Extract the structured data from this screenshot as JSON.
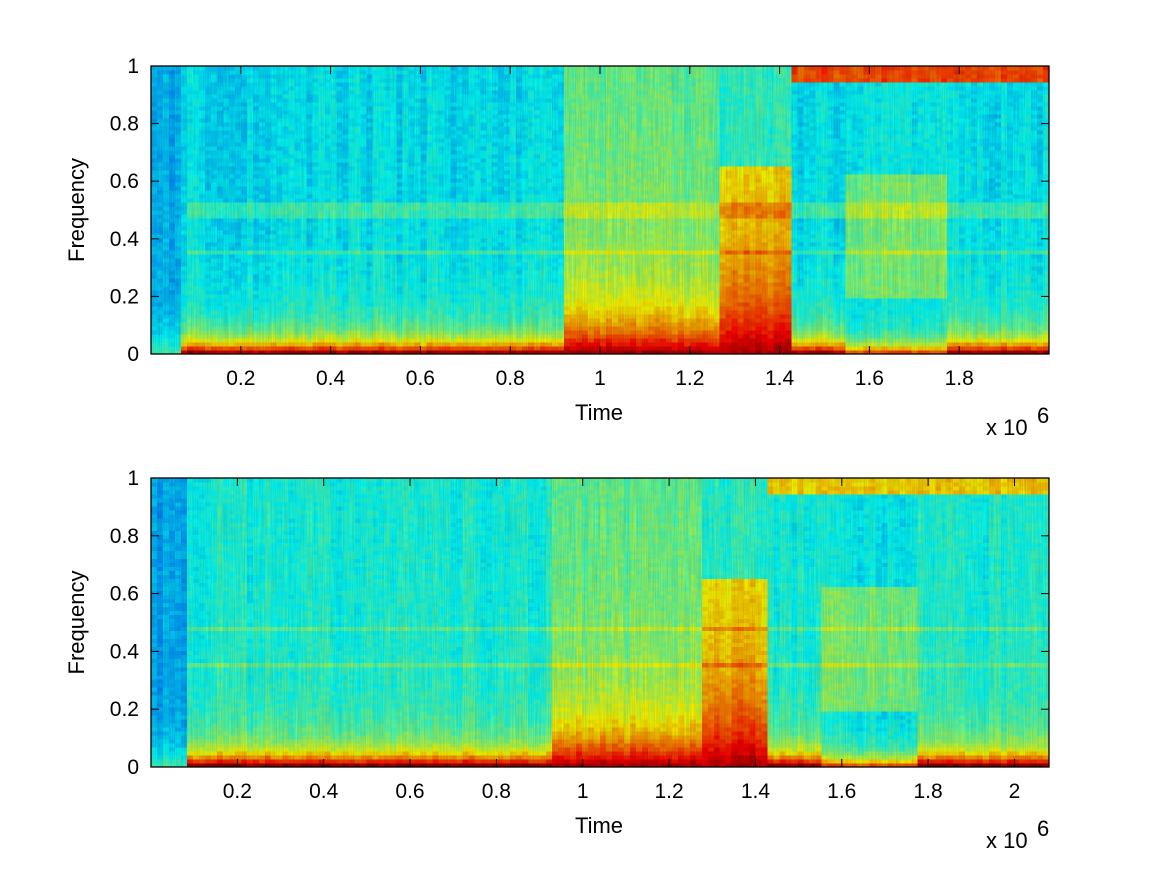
{
  "chart_data": [
    {
      "type": "heatmap",
      "subtype": "spectrogram",
      "colormap": "jet",
      "xlabel": "Time",
      "ylabel": "Frequency",
      "x_multiplier": "x 10",
      "x_multiplier_exponent": "6",
      "xlim": [
        0,
        2000000
      ],
      "ylim": [
        0,
        1
      ],
      "x_ticks": [
        200000,
        400000,
        600000,
        800000,
        1000000,
        1200000,
        1400000,
        1600000,
        1800000
      ],
      "x_tick_labels": [
        "0.2",
        "0.4",
        "0.6",
        "0.8",
        "1",
        "1.2",
        "1.4",
        "1.6",
        "1.8"
      ],
      "y_ticks": [
        0,
        0.2,
        0.4,
        0.6,
        0.8,
        1
      ],
      "y_tick_labels": [
        "0",
        "0.2",
        "0.4",
        "0.6",
        "0.8",
        "1"
      ],
      "grid": false,
      "segments": [
        {
          "t_start": 0,
          "t_end": 70000,
          "low_band_top": 0.03,
          "description": "quiet onset, cool colors"
        },
        {
          "t_start": 70000,
          "t_end": 925000,
          "low_band_top": 0.07,
          "energy": "red band below 0.05, yellow-green up to ~0.15"
        },
        {
          "t_start": 925000,
          "t_end": 1270000,
          "low_band_top": 0.27,
          "energy": "strong red below 0.15, yellow-green to 1"
        },
        {
          "t_start": 1270000,
          "t_end": 1430000,
          "low_band_top": 0.25,
          "energy": "orange burst up to ~0.25, yellow to 0.65"
        },
        {
          "t_start": 1430000,
          "t_end": 1550000,
          "low_band_top": 0.05,
          "energy": "red floor, cyan above"
        },
        {
          "t_start": 1550000,
          "t_end": 1780000,
          "low_band_top": 0.05,
          "energy": "green patch 0.2–0.62"
        },
        {
          "t_start": 1780000,
          "t_end": 2000000,
          "low_band_top": 0.06,
          "energy": "red floor rising, cyan above"
        }
      ],
      "high_band": {
        "t_start": 1430000,
        "t_end": 2000000,
        "freq_range": [
          0.95,
          1.0
        ],
        "level": "orange"
      },
      "harmonic_lines": [
        0.35,
        0.48,
        0.5,
        0.52
      ]
    },
    {
      "type": "heatmap",
      "subtype": "spectrogram",
      "colormap": "jet",
      "xlabel": "Time",
      "ylabel": "Frequency",
      "x_multiplier": "x 10",
      "x_multiplier_exponent": "6",
      "xlim": [
        0,
        2080000
      ],
      "ylim": [
        0,
        1
      ],
      "x_ticks": [
        200000,
        400000,
        600000,
        800000,
        1000000,
        1200000,
        1400000,
        1600000,
        1800000,
        2000000
      ],
      "x_tick_labels": [
        "0.2",
        "0.4",
        "0.6",
        "0.8",
        "1",
        "1.2",
        "1.4",
        "1.6",
        "1.8",
        "2"
      ],
      "y_ticks": [
        0,
        0.2,
        0.4,
        0.6,
        0.8,
        1
      ],
      "y_tick_labels": [
        "0",
        "0.2",
        "0.4",
        "0.6",
        "0.8",
        "1"
      ],
      "grid": false,
      "segments": [
        {
          "t_start": 0,
          "t_end": 80000,
          "low_band_top": 0.05,
          "description": "quiet onset, cool colors"
        },
        {
          "t_start": 80000,
          "t_end": 925000,
          "low_band_top": 0.1,
          "energy": "orange-red band below 0.08, green above"
        },
        {
          "t_start": 925000,
          "t_end": 1270000,
          "low_band_top": 0.27,
          "energy": "dark red below 0.15, yellow to 0.8"
        },
        {
          "t_start": 1270000,
          "t_end": 1430000,
          "low_band_top": 0.33,
          "energy": "orange burst up to ~0.3, yellow to 0.6"
        },
        {
          "t_start": 1430000,
          "t_end": 1550000,
          "low_band_top": 0.08,
          "energy": "red floor, green above"
        },
        {
          "t_start": 1550000,
          "t_end": 1780000,
          "low_band_top": 0.08,
          "energy": "green patch 0.2–0.6"
        },
        {
          "t_start": 1780000,
          "t_end": 2080000,
          "low_band_top": 0.08,
          "energy": "red floor, transient near 2.0e6"
        }
      ],
      "high_band": {
        "t_start": 1430000,
        "t_end": 2080000,
        "freq_range": [
          0.95,
          1.0
        ],
        "level": "yellow"
      },
      "harmonic_lines": [
        0.35,
        0.48
      ]
    }
  ]
}
